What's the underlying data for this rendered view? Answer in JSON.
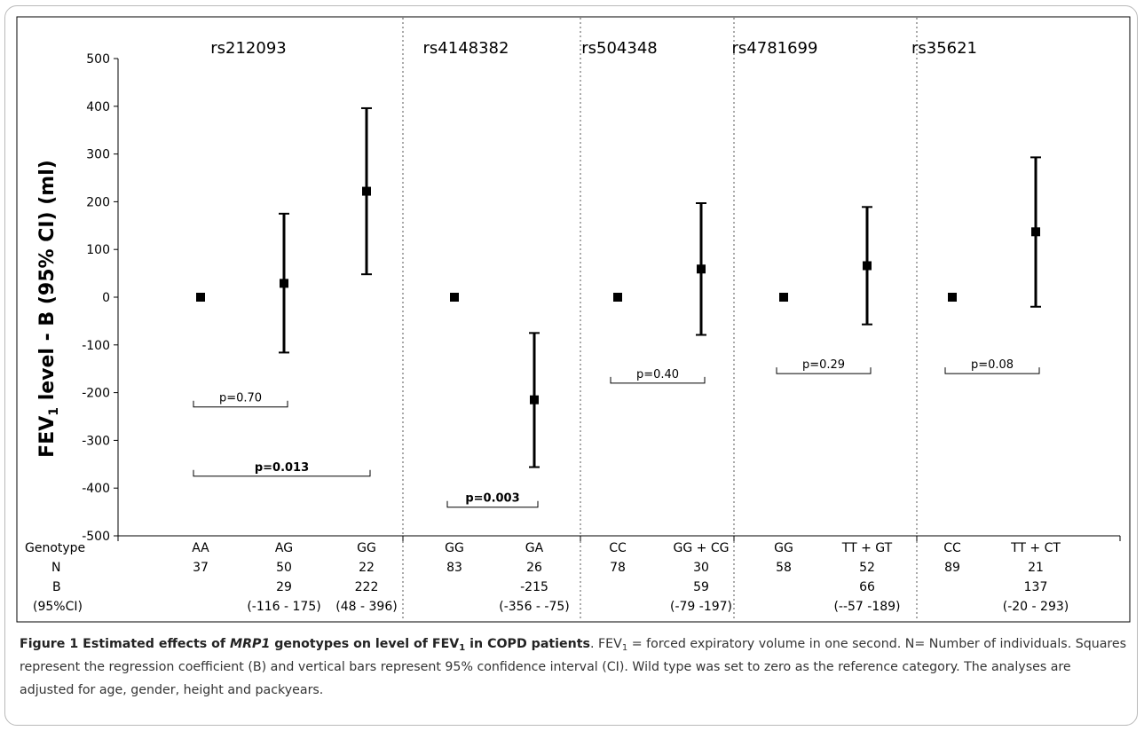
{
  "chart_data": {
    "type": "scatter",
    "ylabel_main": "FEV",
    "ylabel_sub": "1",
    "ylabel_rest": " level - B (95% CI) (ml)",
    "ylim": [
      -500,
      500
    ],
    "yticks": [
      500,
      400,
      300,
      200,
      100,
      0,
      -100,
      -200,
      -300,
      -400,
      -500
    ],
    "row_labels": [
      "Genotype",
      "N",
      "B",
      "(95%CI)"
    ],
    "error_bars": "95% CI",
    "panels": [
      {
        "snp": "rs212093",
        "groups": [
          {
            "genotype": "AA",
            "n": "37",
            "b_label": "",
            "ci_label": "",
            "b": 0,
            "ci": null
          },
          {
            "genotype": "AG",
            "n": "50",
            "b_label": "29",
            "ci_label": "(-116 - 175)",
            "b": 29,
            "ci": [
              -116,
              175
            ]
          },
          {
            "genotype": "GG",
            "n": "22",
            "b_label": "222",
            "ci_label": "(48 - 396)",
            "b": 222,
            "ci": [
              48,
              396
            ]
          }
        ],
        "brackets": [
          {
            "label": "p=0.70",
            "from": 0,
            "to": 1,
            "y": -230,
            "bold": false
          },
          {
            "label": "p=0.013",
            "from": 0,
            "to": 2,
            "y": -375,
            "bold": true
          }
        ]
      },
      {
        "snp": "rs4148382",
        "groups": [
          {
            "genotype": "GG",
            "n": "83",
            "b_label": "",
            "ci_label": "",
            "b": 0,
            "ci": null
          },
          {
            "genotype": "GA",
            "n": "26",
            "b_label": "-215",
            "ci_label": "(-356 - -75)",
            "b": -215,
            "ci": [
              -356,
              -75
            ]
          }
        ],
        "brackets": [
          {
            "label": "p=0.003",
            "from": 0,
            "to": 1,
            "y": -440,
            "bold": true
          }
        ]
      },
      {
        "snp": "rs504348",
        "groups": [
          {
            "genotype": "CC",
            "n": "78",
            "b_label": "",
            "ci_label": "",
            "b": 0,
            "ci": null
          },
          {
            "genotype": "GG + CG",
            "n": "30",
            "b_label": "59",
            "ci_label": "(-79 -197)",
            "b": 59,
            "ci": [
              -79,
              197
            ]
          }
        ],
        "brackets": [
          {
            "label": "p=0.40",
            "from": 0,
            "to": 1,
            "y": -180,
            "bold": false
          }
        ]
      },
      {
        "snp": "rs4781699",
        "groups": [
          {
            "genotype": "GG",
            "n": "58",
            "b_label": "",
            "ci_label": "",
            "b": 0,
            "ci": null
          },
          {
            "genotype": "TT + GT",
            "n": "52",
            "b_label": "66",
            "ci_label": "(--57 -189)",
            "b": 66,
            "ci": [
              -57,
              189
            ]
          }
        ],
        "brackets": [
          {
            "label": "p=0.29",
            "from": 0,
            "to": 1,
            "y": -160,
            "bold": false
          }
        ]
      },
      {
        "snp": "rs35621",
        "groups": [
          {
            "genotype": "CC",
            "n": "89",
            "b_label": "",
            "ci_label": "",
            "b": 0,
            "ci": null
          },
          {
            "genotype": "TT + CT",
            "n": "21",
            "b_label": "137",
            "ci_label": "(-20 - 293)",
            "b": 137,
            "ci": [
              -20,
              293
            ]
          }
        ],
        "brackets": [
          {
            "label": "p=0.08",
            "from": 0,
            "to": 1,
            "y": -160,
            "bold": false
          }
        ]
      }
    ]
  },
  "caption": {
    "bold_1": "Figure 1 Estimated effects of ",
    "bold_italic": "MRP1",
    "bold_2": " genotypes on level of FEV",
    "bold_sub": "1",
    "bold_3": " in COPD patients",
    "t1": ". FEV",
    "t1_sub": "1",
    "t2": " = forced expiratory volume in one second. N= Number of individuals. Squares represent the regression coefficient (B) and vertical bars represent 95% confidence interval (CI). Wild type was set to zero as the reference category. The analyses are adjusted for age, gender, height and packyears."
  }
}
